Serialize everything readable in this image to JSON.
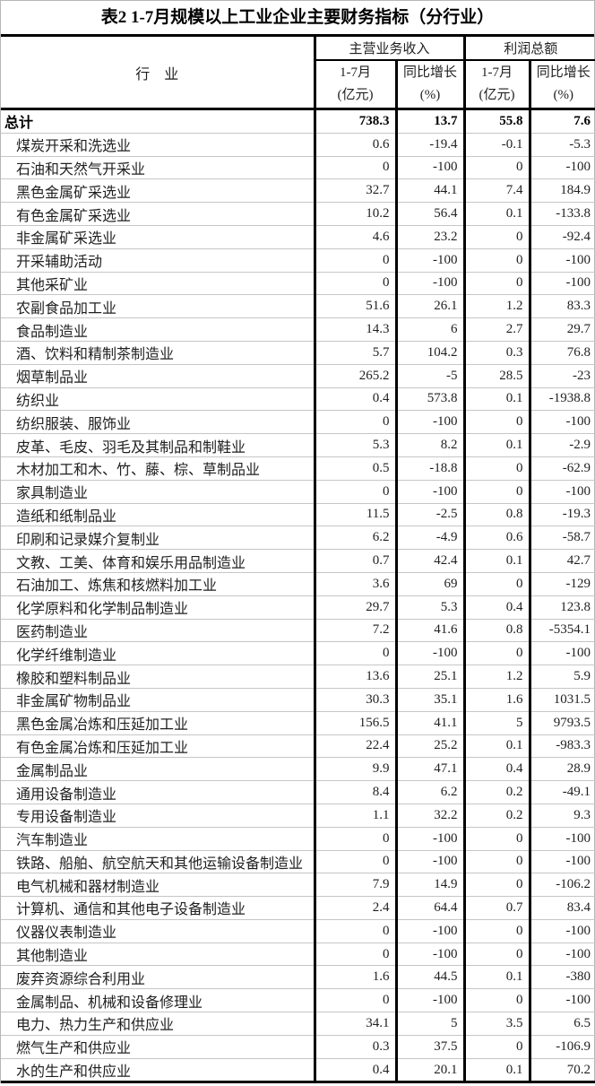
{
  "title": "表2 1-7月规模以上工业企业主要财务指标（分行业）",
  "colors": {
    "text": "#000000",
    "heavy_border": "#000000",
    "row_separator": "#c6c6c6",
    "outer_border": "#b7b7b7",
    "background": "#ffffff"
  },
  "table": {
    "industry_header": "行　业",
    "group_headers": [
      {
        "label": "主营业务收入"
      },
      {
        "label": "利润总额"
      }
    ],
    "sub_headers": [
      {
        "line1": "1-7月",
        "line2": "(亿元)"
      },
      {
        "line1": "同比增长",
        "line2": "(%)"
      },
      {
        "line1": "1-7月",
        "line2": "(亿元)"
      },
      {
        "line1": "同比增长",
        "line2": "(%)"
      }
    ],
    "total_row": {
      "name": "总计",
      "revenue": "738.3",
      "revenue_growth": "13.7",
      "profit": "55.8",
      "profit_growth": "7.6"
    },
    "rows": [
      {
        "name": "煤炭开采和洗选业",
        "revenue": "0.6",
        "revenue_growth": "-19.4",
        "profit": "-0.1",
        "profit_growth": "-5.3"
      },
      {
        "name": "石油和天然气开采业",
        "revenue": "0",
        "revenue_growth": "-100",
        "profit": "0",
        "profit_growth": "-100"
      },
      {
        "name": "黑色金属矿采选业",
        "revenue": "32.7",
        "revenue_growth": "44.1",
        "profit": "7.4",
        "profit_growth": "184.9"
      },
      {
        "name": "有色金属矿采选业",
        "revenue": "10.2",
        "revenue_growth": "56.4",
        "profit": "0.1",
        "profit_growth": "-133.8"
      },
      {
        "name": "非金属矿采选业",
        "revenue": "4.6",
        "revenue_growth": "23.2",
        "profit": "0",
        "profit_growth": "-92.4"
      },
      {
        "name": "开采辅助活动",
        "revenue": "0",
        "revenue_growth": "-100",
        "profit": "0",
        "profit_growth": "-100"
      },
      {
        "name": "其他采矿业",
        "revenue": "0",
        "revenue_growth": "-100",
        "profit": "0",
        "profit_growth": "-100"
      },
      {
        "name": "农副食品加工业",
        "revenue": "51.6",
        "revenue_growth": "26.1",
        "profit": "1.2",
        "profit_growth": "83.3"
      },
      {
        "name": "食品制造业",
        "revenue": "14.3",
        "revenue_growth": "6",
        "profit": "2.7",
        "profit_growth": "29.7"
      },
      {
        "name": "酒、饮料和精制茶制造业",
        "revenue": "5.7",
        "revenue_growth": "104.2",
        "profit": "0.3",
        "profit_growth": "76.8"
      },
      {
        "name": "烟草制品业",
        "revenue": "265.2",
        "revenue_growth": "-5",
        "profit": "28.5",
        "profit_growth": "-23"
      },
      {
        "name": "纺织业",
        "revenue": "0.4",
        "revenue_growth": "573.8",
        "profit": "0.1",
        "profit_growth": "-1938.8"
      },
      {
        "name": "纺织服装、服饰业",
        "revenue": "0",
        "revenue_growth": "-100",
        "profit": "0",
        "profit_growth": "-100"
      },
      {
        "name": "皮革、毛皮、羽毛及其制品和制鞋业",
        "revenue": "5.3",
        "revenue_growth": "8.2",
        "profit": "0.1",
        "profit_growth": "-2.9"
      },
      {
        "name": "木材加工和木、竹、藤、棕、草制品业",
        "revenue": "0.5",
        "revenue_growth": "-18.8",
        "profit": "0",
        "profit_growth": "-62.9"
      },
      {
        "name": "家具制造业",
        "revenue": "0",
        "revenue_growth": "-100",
        "profit": "0",
        "profit_growth": "-100"
      },
      {
        "name": "造纸和纸制品业",
        "revenue": "11.5",
        "revenue_growth": "-2.5",
        "profit": "0.8",
        "profit_growth": "-19.3"
      },
      {
        "name": "印刷和记录媒介复制业",
        "revenue": "6.2",
        "revenue_growth": "-4.9",
        "profit": "0.6",
        "profit_growth": "-58.7"
      },
      {
        "name": "文教、工美、体育和娱乐用品制造业",
        "revenue": "0.7",
        "revenue_growth": "42.4",
        "profit": "0.1",
        "profit_growth": "42.7"
      },
      {
        "name": "石油加工、炼焦和核燃料加工业",
        "revenue": "3.6",
        "revenue_growth": "69",
        "profit": "0",
        "profit_growth": "-129"
      },
      {
        "name": "化学原料和化学制品制造业",
        "revenue": "29.7",
        "revenue_growth": "5.3",
        "profit": "0.4",
        "profit_growth": "123.8"
      },
      {
        "name": "医药制造业",
        "revenue": "7.2",
        "revenue_growth": "41.6",
        "profit": "0.8",
        "profit_growth": "-5354.1"
      },
      {
        "name": "化学纤维制造业",
        "revenue": "0",
        "revenue_growth": "-100",
        "profit": "0",
        "profit_growth": "-100"
      },
      {
        "name": "橡胶和塑料制品业",
        "revenue": "13.6",
        "revenue_growth": "25.1",
        "profit": "1.2",
        "profit_growth": "5.9"
      },
      {
        "name": "非金属矿物制品业",
        "revenue": "30.3",
        "revenue_growth": "35.1",
        "profit": "1.6",
        "profit_growth": "1031.5"
      },
      {
        "name": "黑色金属冶炼和压延加工业",
        "revenue": "156.5",
        "revenue_growth": "41.1",
        "profit": "5",
        "profit_growth": "9793.5"
      },
      {
        "name": "有色金属冶炼和压延加工业",
        "revenue": "22.4",
        "revenue_growth": "25.2",
        "profit": "0.1",
        "profit_growth": "-983.3"
      },
      {
        "name": "金属制品业",
        "revenue": "9.9",
        "revenue_growth": "47.1",
        "profit": "0.4",
        "profit_growth": "28.9"
      },
      {
        "name": "通用设备制造业",
        "revenue": "8.4",
        "revenue_growth": "6.2",
        "profit": "0.2",
        "profit_growth": "-49.1"
      },
      {
        "name": "专用设备制造业",
        "revenue": "1.1",
        "revenue_growth": "32.2",
        "profit": "0.2",
        "profit_growth": "9.3"
      },
      {
        "name": "汽车制造业",
        "revenue": "0",
        "revenue_growth": "-100",
        "profit": "0",
        "profit_growth": "-100"
      },
      {
        "name": "铁路、船舶、航空航天和其他运输设备制造业",
        "revenue": "0",
        "revenue_growth": "-100",
        "profit": "0",
        "profit_growth": "-100"
      },
      {
        "name": "电气机械和器材制造业",
        "revenue": "7.9",
        "revenue_growth": "14.9",
        "profit": "0",
        "profit_growth": "-106.2"
      },
      {
        "name": "计算机、通信和其他电子设备制造业",
        "revenue": "2.4",
        "revenue_growth": "64.4",
        "profit": "0.7",
        "profit_growth": "83.4"
      },
      {
        "name": "仪器仪表制造业",
        "revenue": "0",
        "revenue_growth": "-100",
        "profit": "0",
        "profit_growth": "-100"
      },
      {
        "name": "其他制造业",
        "revenue": "0",
        "revenue_growth": "-100",
        "profit": "0",
        "profit_growth": "-100"
      },
      {
        "name": "废弃资源综合利用业",
        "revenue": "1.6",
        "revenue_growth": "44.5",
        "profit": "0.1",
        "profit_growth": "-380"
      },
      {
        "name": "金属制品、机械和设备修理业",
        "revenue": "0",
        "revenue_growth": "-100",
        "profit": "0",
        "profit_growth": "-100"
      },
      {
        "name": "电力、热力生产和供应业",
        "revenue": "34.1",
        "revenue_growth": "5",
        "profit": "3.5",
        "profit_growth": "6.5"
      },
      {
        "name": "燃气生产和供应业",
        "revenue": "0.3",
        "revenue_growth": "37.5",
        "profit": "0",
        "profit_growth": "-106.9"
      },
      {
        "name": "水的生产和供应业",
        "revenue": "0.4",
        "revenue_growth": "20.1",
        "profit": "0.1",
        "profit_growth": "70.2"
      }
    ]
  }
}
